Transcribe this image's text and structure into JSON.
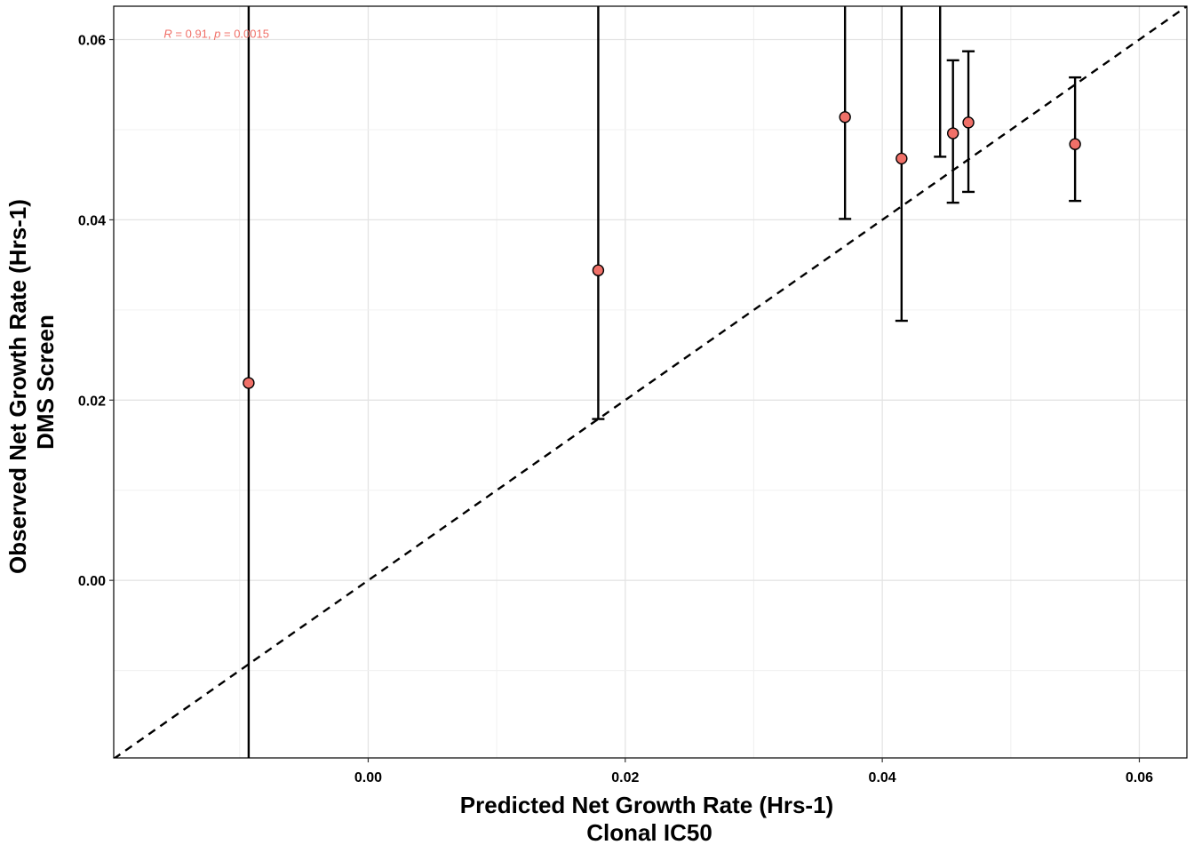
{
  "chart_data": {
    "type": "scatter",
    "title": "",
    "xlabel": [
      "Predicted Net Growth Rate (Hrs-1)",
      "Clonal IC50"
    ],
    "ylabel": [
      "Observed Net Growth Rate (Hrs-1)",
      "DMS Screen"
    ],
    "xlim": [
      -0.0198,
      0.0637
    ],
    "ylim": [
      -0.0197,
      0.0637
    ],
    "x_ticks": [
      0.0,
      0.02,
      0.04,
      0.06
    ],
    "x_tick_labels": [
      "0.00",
      "0.02",
      "0.04",
      "0.06"
    ],
    "y_ticks": [
      0.0,
      0.02,
      0.04,
      0.06
    ],
    "y_tick_labels": [
      "0.00",
      "0.02",
      "0.04",
      "0.06"
    ],
    "grid": true,
    "reference_line": {
      "style": "dashed",
      "slope": 1,
      "intercept": 0
    },
    "annotation": {
      "R_label": "R",
      "R_value": " = 0.91, ",
      "p_label": "p",
      "p_value": " = 0.0015",
      "x": -0.0159,
      "y": 0.0607
    },
    "point_color": "#f07068",
    "points": [
      {
        "x": -0.0093,
        "y": 0.0219,
        "ymin": -0.0197,
        "ymax": 0.0637
      },
      {
        "x": 0.0179,
        "y": 0.0344,
        "ymin": 0.0179,
        "ymax": 0.0637
      },
      {
        "x": 0.0371,
        "y": 0.0514,
        "ymin": 0.0401,
        "ymax": 0.0637
      },
      {
        "x": 0.0415,
        "y": 0.0468,
        "ymin": 0.0288,
        "ymax": 0.0637
      },
      {
        "x": 0.0445,
        "y": null,
        "ymin": 0.047,
        "ymax": 0.0637
      },
      {
        "x": 0.0455,
        "y": 0.0496,
        "ymin": 0.0419,
        "ymax": 0.0577
      },
      {
        "x": 0.0467,
        "y": 0.0508,
        "ymin": 0.0431,
        "ymax": 0.0587
      },
      {
        "x": 0.055,
        "y": 0.0484,
        "ymin": 0.0421,
        "ymax": 0.0558
      }
    ]
  }
}
